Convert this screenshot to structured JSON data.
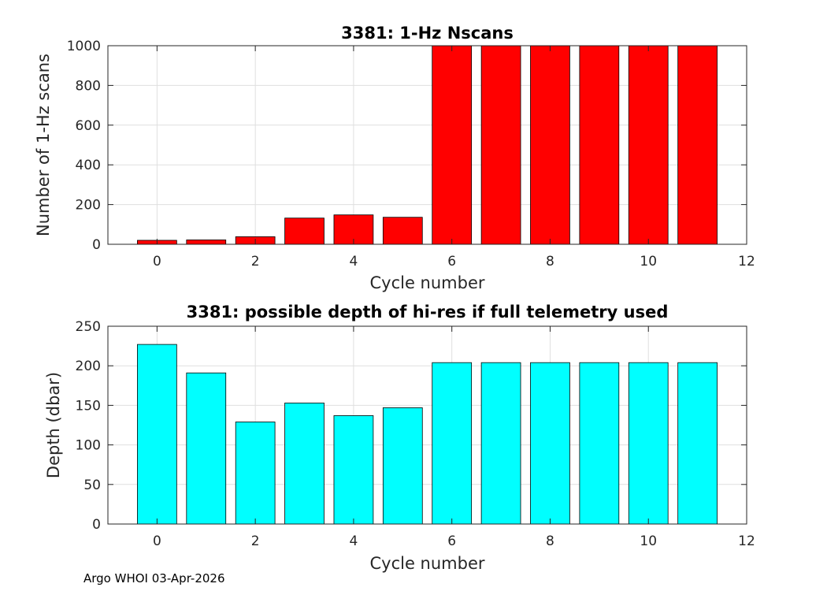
{
  "chart_data": [
    {
      "type": "bar",
      "title": "3381: 1-Hz Nscans",
      "xlabel": "Cycle number",
      "ylabel": "Number of 1-Hz scans",
      "x": [
        0,
        1,
        2,
        3,
        4,
        5,
        6,
        7,
        8,
        9,
        10,
        11
      ],
      "values": [
        20,
        22,
        38,
        132,
        148,
        136,
        1000,
        1000,
        1000,
        1000,
        1000,
        1000
      ],
      "xlim": [
        -1,
        12
      ],
      "ylim": [
        0,
        1000
      ],
      "xticks": [
        "0",
        "2",
        "4",
        "6",
        "8",
        "10",
        "12"
      ],
      "yticks": [
        "0",
        "200",
        "400",
        "600",
        "800",
        "1000"
      ],
      "bar_color": "#ff0000",
      "grid": true
    },
    {
      "type": "bar",
      "title": "3381: possible depth of hi-res if full telemetry used",
      "xlabel": "Cycle number",
      "ylabel": "Depth (dbar)",
      "x": [
        0,
        1,
        2,
        3,
        4,
        5,
        6,
        7,
        8,
        9,
        10,
        11
      ],
      "values": [
        227,
        191,
        129,
        153,
        137,
        147,
        204,
        204,
        204,
        204,
        204,
        204
      ],
      "xlim": [
        -1,
        12
      ],
      "ylim": [
        0,
        250
      ],
      "xticks": [
        "0",
        "2",
        "4",
        "6",
        "8",
        "10",
        "12"
      ],
      "yticks": [
        "0",
        "50",
        "100",
        "150",
        "200",
        "250"
      ],
      "bar_color": "#00ffff",
      "grid": true
    }
  ],
  "footer": "Argo WHOI 03-Apr-2026"
}
